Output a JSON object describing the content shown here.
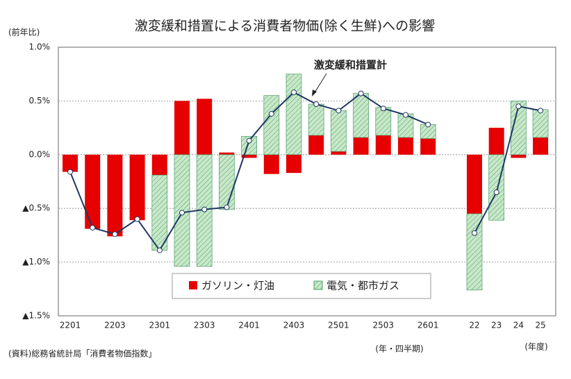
{
  "chart_data": {
    "type": "stacked-bar-line",
    "title": "激変緩和措置による消費者物価(除く生鮮)への影響",
    "y_label": "(前年比)",
    "x_label_quarter": "(年・四半期)",
    "x_label_year": "(年度)",
    "source": "(資料)総務省統計局「消費者物価指数」",
    "categories": [
      "2201",
      null,
      "2203",
      null,
      "2301",
      null,
      "2303",
      null,
      "2401",
      null,
      "2403",
      null,
      "2501",
      null,
      "2503",
      null,
      "2601",
      "22",
      "23",
      "24",
      "25"
    ],
    "ylim": [
      -1.5,
      1.0
    ],
    "yticks": [
      {
        "value": 1.0,
        "label": "1.0%"
      },
      {
        "value": 0.5,
        "label": "0.5%"
      },
      {
        "value": 0.0,
        "label": "0.0%"
      },
      {
        "value": -0.5,
        "label": "▲0.5%"
      },
      {
        "value": -1.0,
        "label": "▲1.0%"
      },
      {
        "value": -1.5,
        "label": "▲1.5%"
      }
    ],
    "grid": true,
    "series": [
      {
        "name": "ガソリン・灯油",
        "color": "#e60000",
        "kind": "bar",
        "values": [
          -0.16,
          -0.69,
          -0.76,
          -0.61,
          -0.19,
          0.5,
          0.52,
          0.02,
          -0.03,
          -0.18,
          -0.17,
          0.18,
          0.03,
          0.16,
          0.18,
          0.16,
          0.15,
          -0.55,
          0.25,
          -0.03,
          0.16
        ]
      },
      {
        "name": "電気・都市ガス",
        "color": "#c8e8c8",
        "kind": "bar",
        "values": [
          0,
          0,
          0,
          0,
          -0.7,
          -1.04,
          -1.04,
          -0.51,
          0.17,
          0.55,
          0.75,
          0.29,
          0.38,
          0.41,
          0.26,
          0.22,
          0.13,
          -0.71,
          -0.61,
          0.5,
          0.26
        ]
      },
      {
        "name": "激変緩和措置計",
        "color": "#1f3864",
        "kind": "line",
        "values": [
          -0.16,
          -0.68,
          -0.74,
          -0.6,
          -0.89,
          -0.54,
          -0.51,
          -0.49,
          0.13,
          0.38,
          0.58,
          0.47,
          0.41,
          0.57,
          0.43,
          0.37,
          0.28,
          -0.73,
          -0.35,
          0.45,
          0.41
        ]
      }
    ]
  }
}
